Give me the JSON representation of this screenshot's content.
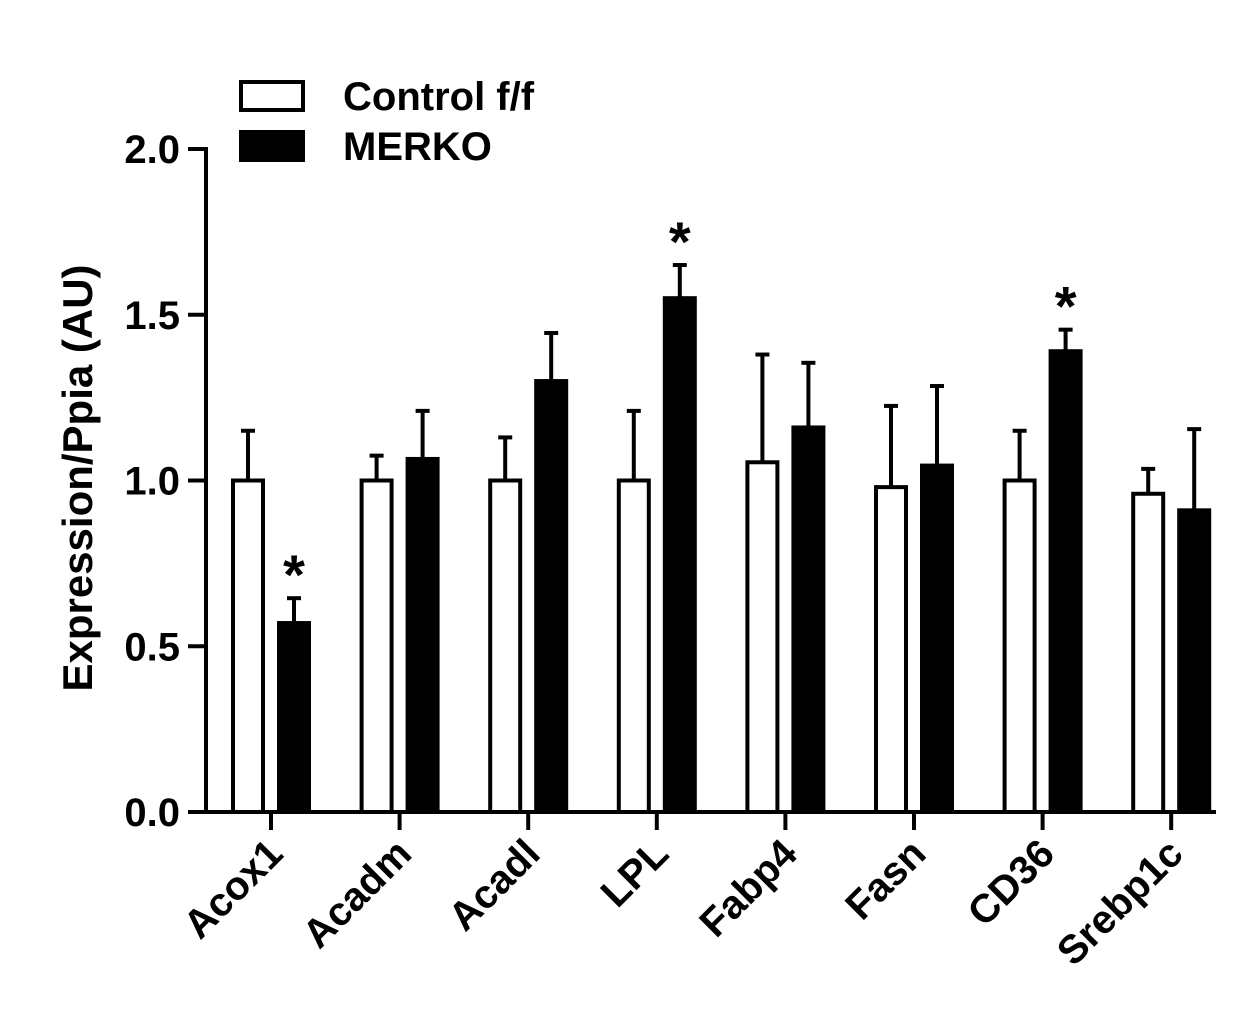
{
  "chart_data": {
    "type": "bar",
    "ylabel": "Expression/Ppia (AU)",
    "ylim": [
      0,
      2.0
    ],
    "yticks": [
      "0.0",
      "0.5",
      "1.0",
      "1.5",
      "2.0"
    ],
    "ytick_values": [
      0,
      0.5,
      1.0,
      1.5,
      2.0
    ],
    "categories": [
      "Acox1",
      "Acadm",
      "Acadl",
      "LPL",
      "Fabp4",
      "Fasn",
      "CD36",
      "Srebp1c"
    ],
    "series": [
      {
        "name": "Control f/f",
        "fill": "#ffffff",
        "values": [
          1.0,
          1.0,
          1.0,
          1.0,
          1.055,
          0.98,
          1.0,
          0.96
        ],
        "errors": [
          0.15,
          0.075,
          0.13,
          0.21,
          0.325,
          0.245,
          0.15,
          0.075
        ]
      },
      {
        "name": "MERKO",
        "fill": "#000000",
        "values": [
          0.57,
          1.065,
          1.3,
          1.55,
          1.16,
          1.045,
          1.39,
          0.91
        ],
        "errors": [
          0.075,
          0.145,
          0.145,
          0.1,
          0.195,
          0.24,
          0.065,
          0.245
        ]
      }
    ],
    "significance_marker": "*",
    "significance": [
      [
        false,
        true
      ],
      [
        false,
        false
      ],
      [
        false,
        false
      ],
      [
        false,
        true
      ],
      [
        false,
        false
      ],
      [
        false,
        false
      ],
      [
        false,
        true
      ],
      [
        false,
        false
      ]
    ],
    "legend_position": "top-left",
    "grid": false
  }
}
